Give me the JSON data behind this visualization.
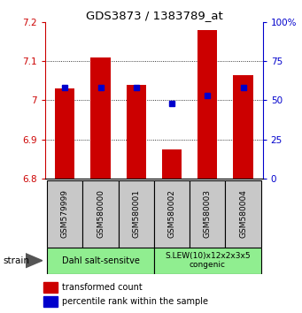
{
  "title": "GDS3873 / 1383789_at",
  "samples": [
    "GSM579999",
    "GSM580000",
    "GSM580001",
    "GSM580002",
    "GSM580003",
    "GSM580004"
  ],
  "red_values": [
    7.03,
    7.11,
    7.04,
    6.875,
    7.18,
    7.065
  ],
  "ylim_left": [
    6.8,
    7.2
  ],
  "ylim_right": [
    0,
    100
  ],
  "yticks_left": [
    6.8,
    6.9,
    7.0,
    7.1,
    7.2
  ],
  "yticks_right": [
    0,
    25,
    50,
    75,
    100
  ],
  "ytick_labels_left": [
    "6.8",
    "6.9",
    "7",
    "7.1",
    "7.2"
  ],
  "ytick_labels_right": [
    "0",
    "25",
    "50",
    "75",
    "100%"
  ],
  "baseline": 6.8,
  "blue_percentiles": [
    58,
    58,
    58,
    48,
    53,
    58
  ],
  "groups": [
    {
      "label": "Dahl salt-sensitve",
      "start": 0,
      "end": 3,
      "color": "#90ee90"
    },
    {
      "label": "S.LEW(10)x12x2x3x5\ncongenic",
      "start": 3,
      "end": 6,
      "color": "#90ee90"
    }
  ],
  "legend_red": "transformed count",
  "legend_blue": "percentile rank within the sample",
  "bar_color": "#cc0000",
  "dot_color": "#0000cc",
  "left_color": "#cc0000",
  "right_color": "#0000cc",
  "sample_box_color": "#c8c8c8",
  "fig_width": 3.41,
  "fig_height": 3.54,
  "dpi": 100
}
